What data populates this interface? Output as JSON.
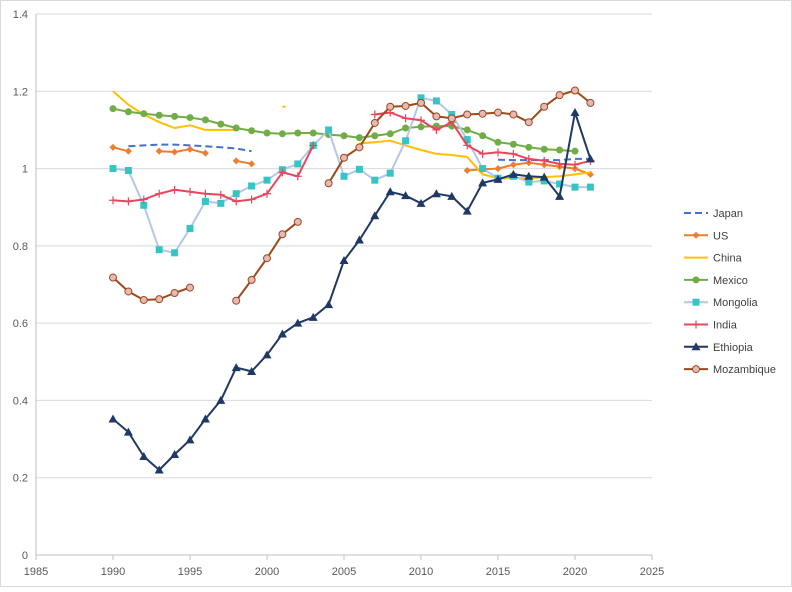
{
  "chart_data": {
    "type": "line",
    "title": "",
    "xlabel": "",
    "ylabel": "",
    "xlim": [
      1985,
      2025
    ],
    "ylim": [
      0,
      1.4
    ],
    "x_ticks": [
      1985,
      1990,
      1995,
      2000,
      2005,
      2010,
      2015,
      2020,
      2025
    ],
    "y_ticks": [
      0,
      0.2,
      0.4,
      0.6,
      0.8,
      1,
      1.2,
      1.4
    ],
    "grid": "horizontal",
    "legend_position": "right",
    "series": [
      {
        "name": "Japan",
        "color": "#4472c4",
        "marker": "dash",
        "segments": [
          [
            [
              1991,
              1.058
            ],
            [
              1992,
              1.06
            ],
            [
              1993,
              1.062
            ],
            [
              1994,
              1.062
            ],
            [
              1995,
              1.06
            ],
            [
              1996,
              1.058
            ],
            [
              1997,
              1.055
            ],
            [
              1998,
              1.052
            ],
            [
              1999,
              1.045
            ]
          ],
          [
            [
              2015,
              1.023
            ],
            [
              2016,
              1.022
            ],
            [
              2017,
              1.022
            ],
            [
              2018,
              1.022
            ],
            [
              2019,
              1.022
            ],
            [
              2020,
              1.025
            ],
            [
              2021,
              1.025
            ]
          ]
        ]
      },
      {
        "name": "US",
        "color": "#ed7d31",
        "marker": "diamond",
        "segments": [
          [
            [
              1990,
              1.055
            ],
            [
              1991,
              1.045
            ]
          ],
          [
            [
              1993,
              1.045
            ],
            [
              1994,
              1.043
            ],
            [
              1995,
              1.05
            ],
            [
              1996,
              1.04
            ]
          ],
          [
            [
              1998,
              1.02
            ],
            [
              1999,
              1.012
            ]
          ],
          [
            [
              2013,
              0.995
            ],
            [
              2014,
              0.998
            ],
            [
              2015,
              1.0
            ],
            [
              2016,
              1.01
            ],
            [
              2017,
              1.015
            ],
            [
              2018,
              1.01
            ],
            [
              2019,
              1.005
            ],
            [
              2020,
              1.0
            ],
            [
              2021,
              0.985
            ]
          ]
        ]
      },
      {
        "name": "China",
        "color": "#ffc000",
        "marker": "none",
        "segments": [
          [
            [
              1990,
              1.2
            ],
            [
              1991,
              1.165
            ],
            [
              1992,
              1.14
            ],
            [
              1993,
              1.12
            ],
            [
              1994,
              1.105
            ],
            [
              1995,
              1.112
            ],
            [
              1996,
              1.1
            ],
            [
              1997,
              1.1
            ],
            [
              1998,
              1.1
            ]
          ],
          [
            [
              2001,
              1.16
            ],
            [
              2001.2,
              1.16
            ]
          ],
          [
            [
              2006,
              1.065
            ],
            [
              2007,
              1.068
            ],
            [
              2008,
              1.072
            ],
            [
              2009,
              1.06
            ],
            [
              2010,
              1.048
            ],
            [
              2011,
              1.038
            ],
            [
              2012,
              1.035
            ],
            [
              2013,
              1.03
            ],
            [
              2014,
              0.985
            ],
            [
              2015,
              0.975
            ],
            [
              2016,
              0.975
            ],
            [
              2017,
              0.975
            ],
            [
              2018,
              0.978
            ],
            [
              2019,
              0.98
            ],
            [
              2020,
              0.985
            ],
            [
              2021,
              0.99
            ]
          ]
        ]
      },
      {
        "name": "Mexico",
        "color": "#70ad47",
        "marker": "circle",
        "segments": [
          [
            [
              1990,
              1.155
            ],
            [
              1991,
              1.147
            ],
            [
              1992,
              1.142
            ],
            [
              1993,
              1.138
            ],
            [
              1994,
              1.135
            ],
            [
              1995,
              1.132
            ],
            [
              1996,
              1.126
            ],
            [
              1997,
              1.115
            ],
            [
              1998,
              1.105
            ],
            [
              1999,
              1.098
            ],
            [
              2000,
              1.092
            ],
            [
              2001,
              1.09
            ],
            [
              2002,
              1.092
            ],
            [
              2003,
              1.092
            ],
            [
              2004,
              1.088
            ],
            [
              2005,
              1.085
            ],
            [
              2006,
              1.08
            ],
            [
              2007,
              1.085
            ],
            [
              2008,
              1.09
            ],
            [
              2009,
              1.105
            ],
            [
              2010,
              1.108
            ],
            [
              2011,
              1.11
            ],
            [
              2012,
              1.11
            ],
            [
              2013,
              1.1
            ],
            [
              2014,
              1.085
            ],
            [
              2015,
              1.068
            ],
            [
              2016,
              1.063
            ],
            [
              2017,
              1.055
            ],
            [
              2018,
              1.05
            ],
            [
              2019,
              1.048
            ],
            [
              2020,
              1.045
            ]
          ]
        ]
      },
      {
        "name": "Mongolia",
        "color": "#36c5c5",
        "marker": "square",
        "segments": [
          [
            [
              1990,
              1.0
            ],
            [
              1991,
              0.995
            ],
            [
              1992,
              0.905
            ],
            [
              1993,
              0.79
            ],
            [
              1994,
              0.782
            ],
            [
              1995,
              0.845
            ],
            [
              1996,
              0.915
            ],
            [
              1997,
              0.91
            ],
            [
              1998,
              0.935
            ],
            [
              1999,
              0.955
            ],
            [
              2000,
              0.97
            ],
            [
              2001,
              0.997
            ],
            [
              2002,
              1.012
            ],
            [
              2003,
              1.06
            ],
            [
              2004,
              1.1
            ],
            [
              2005,
              0.98
            ],
            [
              2006,
              0.998
            ],
            [
              2007,
              0.97
            ],
            [
              2008,
              0.988
            ],
            [
              2009,
              1.072
            ],
            [
              2010,
              1.183
            ],
            [
              2011,
              1.175
            ],
            [
              2012,
              1.14
            ],
            [
              2013,
              1.075
            ],
            [
              2014,
              1.0
            ],
            [
              2015,
              0.975
            ],
            [
              2016,
              0.98
            ],
            [
              2017,
              0.965
            ],
            [
              2018,
              0.968
            ],
            [
              2019,
              0.96
            ],
            [
              2020,
              0.952
            ],
            [
              2021,
              0.952
            ]
          ]
        ]
      },
      {
        "name": "India",
        "color": "#e8465c",
        "marker": "plus",
        "segments": [
          [
            [
              1990,
              0.918
            ],
            [
              1991,
              0.915
            ],
            [
              1992,
              0.92
            ],
            [
              1993,
              0.935
            ],
            [
              1994,
              0.945
            ],
            [
              1995,
              0.94
            ],
            [
              1996,
              0.935
            ],
            [
              1997,
              0.932
            ],
            [
              1998,
              0.915
            ],
            [
              1999,
              0.92
            ],
            [
              2000,
              0.935
            ],
            [
              2001,
              0.99
            ],
            [
              2002,
              0.98
            ],
            [
              2003,
              1.06
            ]
          ],
          [
            [
              2007,
              1.14
            ],
            [
              2008,
              1.145
            ],
            [
              2009,
              1.13
            ],
            [
              2010,
              1.125
            ],
            [
              2011,
              1.1
            ],
            [
              2012,
              1.12
            ],
            [
              2013,
              1.06
            ],
            [
              2014,
              1.038
            ],
            [
              2015,
              1.042
            ],
            [
              2016,
              1.038
            ],
            [
              2017,
              1.025
            ],
            [
              2018,
              1.02
            ],
            [
              2019,
              1.012
            ],
            [
              2020,
              1.01
            ],
            [
              2021,
              1.02
            ]
          ]
        ]
      },
      {
        "name": "Ethiopia",
        "color": "#203864",
        "marker": "triangle",
        "segments": [
          [
            [
              1990,
              0.352
            ],
            [
              1991,
              0.318
            ],
            [
              1992,
              0.255
            ],
            [
              1993,
              0.22
            ],
            [
              1994,
              0.26
            ],
            [
              1995,
              0.298
            ],
            [
              1996,
              0.352
            ],
            [
              1997,
              0.4
            ],
            [
              1998,
              0.485
            ],
            [
              1999,
              0.475
            ],
            [
              2000,
              0.518
            ],
            [
              2001,
              0.572
            ],
            [
              2002,
              0.6
            ],
            [
              2003,
              0.615
            ],
            [
              2004,
              0.648
            ],
            [
              2005,
              0.762
            ],
            [
              2006,
              0.815
            ],
            [
              2007,
              0.878
            ],
            [
              2008,
              0.94
            ],
            [
              2009,
              0.93
            ],
            [
              2010,
              0.91
            ],
            [
              2011,
              0.935
            ],
            [
              2012,
              0.928
            ],
            [
              2013,
              0.89
            ],
            [
              2014,
              0.963
            ],
            [
              2015,
              0.972
            ],
            [
              2016,
              0.985
            ],
            [
              2017,
              0.98
            ],
            [
              2018,
              0.978
            ],
            [
              2019,
              0.928
            ],
            [
              2020,
              1.145
            ],
            [
              2021,
              1.025
            ]
          ]
        ]
      },
      {
        "name": "Mozambique",
        "color": "#9c4a1a",
        "marker": "circle-pink",
        "segments": [
          [
            [
              1990,
              0.718
            ],
            [
              1991,
              0.682
            ],
            [
              1992,
              0.66
            ],
            [
              1993,
              0.662
            ],
            [
              1994,
              0.678
            ],
            [
              1995,
              0.692
            ]
          ],
          [
            [
              1998,
              0.658
            ],
            [
              1999,
              0.712
            ],
            [
              2000,
              0.768
            ],
            [
              2001,
              0.83
            ],
            [
              2002,
              0.862
            ]
          ],
          [
            [
              2004,
              0.962
            ],
            [
              2005,
              1.028
            ],
            [
              2006,
              1.055
            ],
            [
              2007,
              1.118
            ],
            [
              2008,
              1.16
            ],
            [
              2009,
              1.162
            ],
            [
              2010,
              1.17
            ],
            [
              2011,
              1.135
            ],
            [
              2012,
              1.13
            ],
            [
              2013,
              1.14
            ],
            [
              2014,
              1.142
            ],
            [
              2015,
              1.145
            ],
            [
              2016,
              1.14
            ],
            [
              2017,
              1.12
            ],
            [
              2018,
              1.16
            ],
            [
              2019,
              1.19
            ],
            [
              2020,
              1.202
            ],
            [
              2021,
              1.17
            ]
          ]
        ]
      }
    ]
  }
}
